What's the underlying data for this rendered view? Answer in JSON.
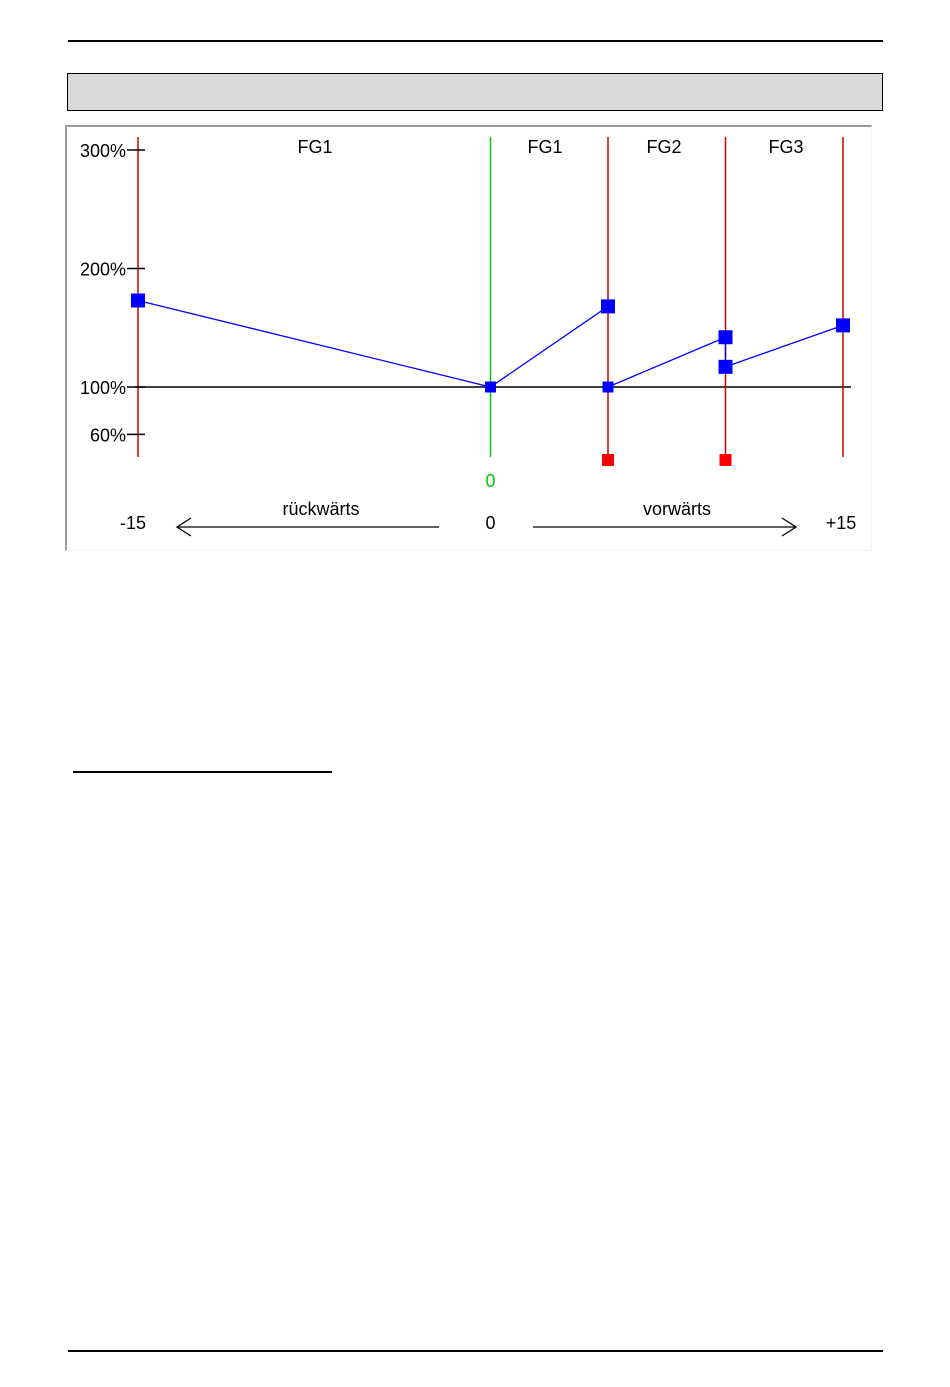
{
  "page": {
    "header_bar_text": "",
    "below_figure_heading": ""
  },
  "chart_data": {
    "type": "line",
    "y_tick_labels": [
      "300%",
      "200%",
      "100%",
      "60%"
    ],
    "y_ticks": [
      300,
      200,
      100,
      60
    ],
    "x_tick_labels": [
      "-15",
      "0",
      "+15"
    ],
    "center_marker_label": "0",
    "direction_labels": {
      "backward": "rückwärts",
      "forward": "vorwärts"
    },
    "zone_labels": [
      "FG1",
      "FG1",
      "FG2",
      "FG3"
    ],
    "ylim": [
      40,
      310
    ],
    "xlim": [
      -15,
      15
    ],
    "reference_line": 100,
    "vertical_lines": [
      {
        "x": -15,
        "color": "#cc0000"
      },
      {
        "x": 0,
        "color": "#00cc00"
      },
      {
        "x": 5,
        "color": "#cc0000"
      },
      {
        "x": 10,
        "color": "#cc0000"
      },
      {
        "x": 15,
        "color": "#cc0000"
      }
    ],
    "series": [
      {
        "color": "#0000ff",
        "points": [
          [
            -15,
            173
          ],
          [
            0,
            100
          ],
          [
            5,
            168
          ]
        ]
      },
      {
        "color": "#0000ff",
        "points": [
          [
            5,
            100
          ],
          [
            10,
            142
          ],
          [
            10,
            117
          ],
          [
            15,
            152
          ]
        ]
      }
    ],
    "red_markers": [
      [
        5,
        40
      ],
      [
        10,
        40
      ]
    ],
    "colors": {
      "curve": "#0000ff",
      "axis_line": "#cc0000",
      "zero_line": "#00cc00",
      "marker_red": "#ff0000"
    }
  }
}
